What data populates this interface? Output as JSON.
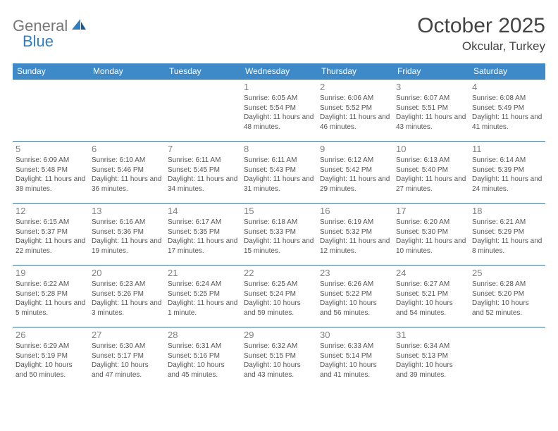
{
  "brand": {
    "part1": "General",
    "part2": "Blue"
  },
  "title": "October 2025",
  "location": "Okcular, Turkey",
  "colors": {
    "header_bg": "#3e89c8",
    "header_text": "#ffffff",
    "row_border": "#3e6f9a",
    "text": "#444444",
    "daynum": "#808080",
    "brand_grey": "#777777",
    "brand_blue": "#2f7fc1",
    "background": "#ffffff"
  },
  "fonts": {
    "title_size": 30,
    "location_size": 17,
    "th_size": 12,
    "daynum_size": 13,
    "info_size": 10
  },
  "layout": {
    "cols": 7,
    "rows": 5
  },
  "weekdays": [
    "Sunday",
    "Monday",
    "Tuesday",
    "Wednesday",
    "Thursday",
    "Friday",
    "Saturday"
  ],
  "weeks": [
    [
      null,
      null,
      null,
      {
        "n": "1",
        "sunrise": "6:05 AM",
        "sunset": "5:54 PM",
        "dl": "11 hours and 48 minutes."
      },
      {
        "n": "2",
        "sunrise": "6:06 AM",
        "sunset": "5:52 PM",
        "dl": "11 hours and 46 minutes."
      },
      {
        "n": "3",
        "sunrise": "6:07 AM",
        "sunset": "5:51 PM",
        "dl": "11 hours and 43 minutes."
      },
      {
        "n": "4",
        "sunrise": "6:08 AM",
        "sunset": "5:49 PM",
        "dl": "11 hours and 41 minutes."
      }
    ],
    [
      {
        "n": "5",
        "sunrise": "6:09 AM",
        "sunset": "5:48 PM",
        "dl": "11 hours and 38 minutes."
      },
      {
        "n": "6",
        "sunrise": "6:10 AM",
        "sunset": "5:46 PM",
        "dl": "11 hours and 36 minutes."
      },
      {
        "n": "7",
        "sunrise": "6:11 AM",
        "sunset": "5:45 PM",
        "dl": "11 hours and 34 minutes."
      },
      {
        "n": "8",
        "sunrise": "6:11 AM",
        "sunset": "5:43 PM",
        "dl": "11 hours and 31 minutes."
      },
      {
        "n": "9",
        "sunrise": "6:12 AM",
        "sunset": "5:42 PM",
        "dl": "11 hours and 29 minutes."
      },
      {
        "n": "10",
        "sunrise": "6:13 AM",
        "sunset": "5:40 PM",
        "dl": "11 hours and 27 minutes."
      },
      {
        "n": "11",
        "sunrise": "6:14 AM",
        "sunset": "5:39 PM",
        "dl": "11 hours and 24 minutes."
      }
    ],
    [
      {
        "n": "12",
        "sunrise": "6:15 AM",
        "sunset": "5:37 PM",
        "dl": "11 hours and 22 minutes."
      },
      {
        "n": "13",
        "sunrise": "6:16 AM",
        "sunset": "5:36 PM",
        "dl": "11 hours and 19 minutes."
      },
      {
        "n": "14",
        "sunrise": "6:17 AM",
        "sunset": "5:35 PM",
        "dl": "11 hours and 17 minutes."
      },
      {
        "n": "15",
        "sunrise": "6:18 AM",
        "sunset": "5:33 PM",
        "dl": "11 hours and 15 minutes."
      },
      {
        "n": "16",
        "sunrise": "6:19 AM",
        "sunset": "5:32 PM",
        "dl": "11 hours and 12 minutes."
      },
      {
        "n": "17",
        "sunrise": "6:20 AM",
        "sunset": "5:30 PM",
        "dl": "11 hours and 10 minutes."
      },
      {
        "n": "18",
        "sunrise": "6:21 AM",
        "sunset": "5:29 PM",
        "dl": "11 hours and 8 minutes."
      }
    ],
    [
      {
        "n": "19",
        "sunrise": "6:22 AM",
        "sunset": "5:28 PM",
        "dl": "11 hours and 5 minutes."
      },
      {
        "n": "20",
        "sunrise": "6:23 AM",
        "sunset": "5:26 PM",
        "dl": "11 hours and 3 minutes."
      },
      {
        "n": "21",
        "sunrise": "6:24 AM",
        "sunset": "5:25 PM",
        "dl": "11 hours and 1 minute."
      },
      {
        "n": "22",
        "sunrise": "6:25 AM",
        "sunset": "5:24 PM",
        "dl": "10 hours and 59 minutes."
      },
      {
        "n": "23",
        "sunrise": "6:26 AM",
        "sunset": "5:22 PM",
        "dl": "10 hours and 56 minutes."
      },
      {
        "n": "24",
        "sunrise": "6:27 AM",
        "sunset": "5:21 PM",
        "dl": "10 hours and 54 minutes."
      },
      {
        "n": "25",
        "sunrise": "6:28 AM",
        "sunset": "5:20 PM",
        "dl": "10 hours and 52 minutes."
      }
    ],
    [
      {
        "n": "26",
        "sunrise": "6:29 AM",
        "sunset": "5:19 PM",
        "dl": "10 hours and 50 minutes."
      },
      {
        "n": "27",
        "sunrise": "6:30 AM",
        "sunset": "5:17 PM",
        "dl": "10 hours and 47 minutes."
      },
      {
        "n": "28",
        "sunrise": "6:31 AM",
        "sunset": "5:16 PM",
        "dl": "10 hours and 45 minutes."
      },
      {
        "n": "29",
        "sunrise": "6:32 AM",
        "sunset": "5:15 PM",
        "dl": "10 hours and 43 minutes."
      },
      {
        "n": "30",
        "sunrise": "6:33 AM",
        "sunset": "5:14 PM",
        "dl": "10 hours and 41 minutes."
      },
      {
        "n": "31",
        "sunrise": "6:34 AM",
        "sunset": "5:13 PM",
        "dl": "10 hours and 39 minutes."
      },
      null
    ]
  ],
  "labels": {
    "sunrise": "Sunrise:",
    "sunset": "Sunset:",
    "daylight": "Daylight:"
  }
}
